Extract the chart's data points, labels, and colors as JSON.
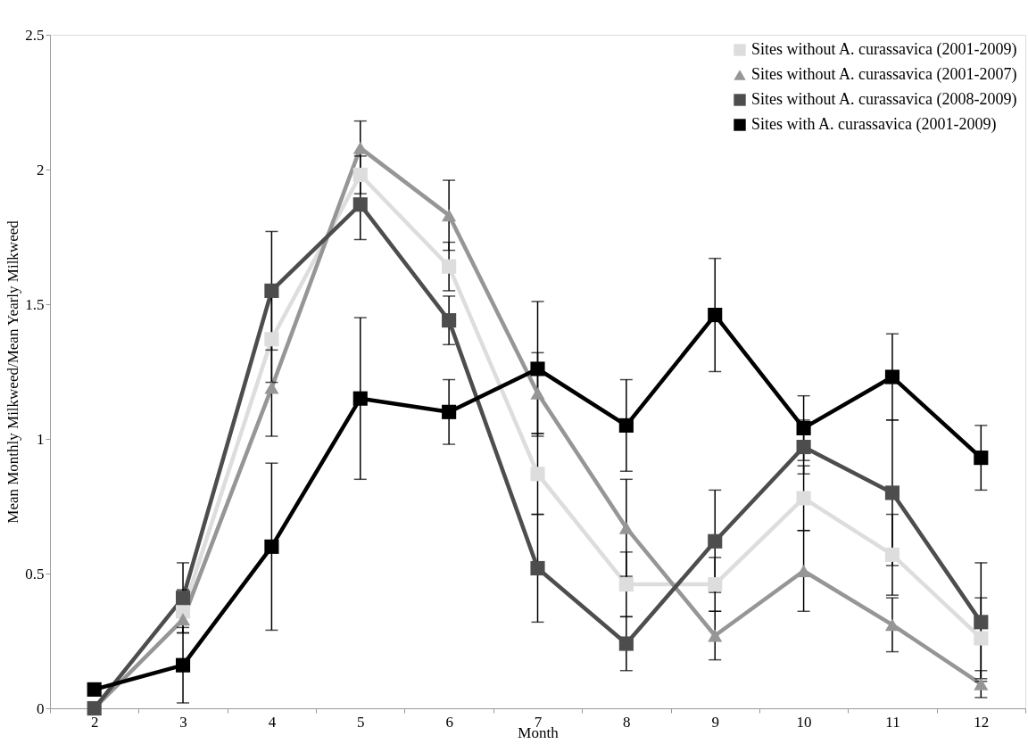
{
  "chart_data": {
    "type": "line",
    "xlabel": "Month",
    "ylabel": "Mean Monthly Milkweed/Mean Yearly Milkweed",
    "categories": [
      "2",
      "3",
      "4",
      "5",
      "6",
      "7",
      "8",
      "9",
      "10",
      "11",
      "12"
    ],
    "series": [
      {
        "name": "Sites without A. curassavica (2001-2009)",
        "color": "#dddddd",
        "marker": "square",
        "values": [
          null,
          0.36,
          1.37,
          1.98,
          1.64,
          0.87,
          0.46,
          0.46,
          0.78,
          0.57,
          0.26
        ],
        "errors": [
          null,
          0.08,
          0.16,
          0.07,
          0.09,
          0.15,
          0.12,
          0.1,
          0.12,
          0.15,
          0.15
        ]
      },
      {
        "name": "Sites without A. curassavica (2001-2007)",
        "color": "#969696",
        "marker": "triangle",
        "values": [
          0,
          0.33,
          1.19,
          2.08,
          1.83,
          1.17,
          0.67,
          0.27,
          0.51,
          0.31,
          0.09
        ],
        "errors": [
          null,
          null,
          0.18,
          0.1,
          0.13,
          0.15,
          0.18,
          0.09,
          0.15,
          0.1,
          0.05
        ]
      },
      {
        "name": "Sites without A. curassavica (2008-2009)",
        "color": "#4d4d4d",
        "marker": "square",
        "values": [
          0,
          0.41,
          1.55,
          1.87,
          1.44,
          0.52,
          0.24,
          0.62,
          0.97,
          0.8,
          0.32
        ],
        "errors": [
          null,
          0.13,
          0.22,
          0.13,
          0.09,
          0.2,
          0.1,
          0.19,
          0.1,
          0.27,
          0.22
        ]
      },
      {
        "name": "Sites with A. curassavica (2001-2009)",
        "color": "#000000",
        "marker": "square",
        "values": [
          0.07,
          0.16,
          0.6,
          1.15,
          1.1,
          1.26,
          1.05,
          1.46,
          1.04,
          1.23,
          0.93
        ],
        "errors": [
          null,
          0.14,
          0.31,
          0.3,
          0.12,
          0.25,
          0.17,
          0.21,
          0.12,
          0.16,
          0.12
        ]
      }
    ],
    "ylim": [
      0,
      2.5
    ],
    "yticks": [
      0,
      0.5,
      1,
      1.5,
      2,
      2.5
    ],
    "grid": false,
    "legend": "top right",
    "line_style": "solid"
  }
}
